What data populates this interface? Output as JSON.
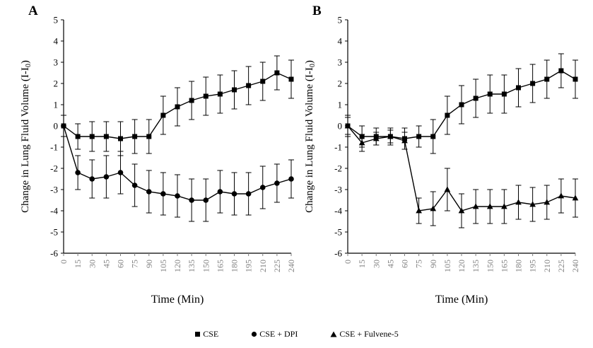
{
  "panels": [
    {
      "label": "A"
    },
    {
      "label": "B"
    }
  ],
  "axis_text": {
    "xlabel": "Time (Min)",
    "ylabel_pre": "Change in Lung Fluid Volume (I-I",
    "ylabel_sub": "0",
    "ylabel_post": ")"
  },
  "legend": {
    "items": [
      {
        "marker": "square",
        "label": "CSE"
      },
      {
        "marker": "circle",
        "label": "CSE + DPI"
      },
      {
        "marker": "triangle",
        "label": "CSE + Fulvene-5"
      }
    ]
  },
  "colors": {
    "series": "#000000",
    "axis": "#000000",
    "x_tick_label": "#7f7f7f",
    "background": "#ffffff"
  },
  "chart_data": [
    {
      "type": "line",
      "title": "A",
      "xlabel": "Time (Min)",
      "ylabel": "Change in Lung Fluid Volume (I-I0)",
      "ylim": [
        -6,
        5
      ],
      "grid": false,
      "legend_position": "bottom",
      "error_bars": true,
      "categories": [
        0,
        15,
        30,
        45,
        60,
        75,
        90,
        105,
        120,
        135,
        150,
        165,
        180,
        195,
        210,
        225,
        240
      ],
      "series": [
        {
          "name": "CSE",
          "marker": "square",
          "values": [
            0,
            -0.5,
            -0.5,
            -0.5,
            -0.6,
            -0.5,
            -0.5,
            0.5,
            0.9,
            1.2,
            1.4,
            1.5,
            1.7,
            1.9,
            2.1,
            2.5,
            2.2
          ],
          "errors": [
            0.5,
            0.6,
            0.7,
            0.7,
            0.8,
            0.8,
            0.8,
            0.9,
            0.9,
            0.9,
            0.9,
            0.9,
            0.9,
            0.9,
            0.9,
            0.8,
            0.9
          ]
        },
        {
          "name": "CSE + DPI",
          "marker": "circle",
          "values": [
            0,
            -2.2,
            -2.5,
            -2.4,
            -2.2,
            -2.8,
            -3.1,
            -3.2,
            -3.3,
            -3.5,
            -3.5,
            -3.1,
            -3.2,
            -3.2,
            -2.9,
            -2.7,
            -2.5
          ],
          "errors": [
            0.5,
            0.8,
            0.9,
            1.0,
            1.0,
            1.0,
            1.0,
            1.0,
            1.0,
            1.0,
            1.0,
            1.0,
            1.0,
            1.0,
            1.0,
            0.9,
            0.9
          ]
        }
      ]
    },
    {
      "type": "line",
      "title": "B",
      "xlabel": "Time (Min)",
      "ylabel": "Change in Lung Fluid Volume (I-I0)",
      "ylim": [
        -6,
        5
      ],
      "grid": false,
      "legend_position": "bottom",
      "error_bars": true,
      "categories": [
        0,
        15,
        30,
        45,
        60,
        75,
        90,
        105,
        120,
        135,
        150,
        165,
        180,
        195,
        210,
        225,
        240
      ],
      "series": [
        {
          "name": "CSE",
          "marker": "square",
          "values": [
            0,
            -0.5,
            -0.5,
            -0.5,
            -0.6,
            -0.5,
            -0.5,
            0.5,
            1.0,
            1.3,
            1.5,
            1.5,
            1.8,
            2.0,
            2.2,
            2.6,
            2.2
          ],
          "errors": [
            0.5,
            0.5,
            0.4,
            0.4,
            0.5,
            0.5,
            0.8,
            0.9,
            0.9,
            0.9,
            0.9,
            0.9,
            0.9,
            0.9,
            0.9,
            0.8,
            0.9
          ]
        },
        {
          "name": "CSE + Fulvene-5",
          "marker": "triangle",
          "values": [
            0,
            -0.8,
            -0.6,
            -0.5,
            -0.7,
            -4.0,
            -3.9,
            -3.0,
            -4.0,
            -3.8,
            -3.8,
            -3.8,
            -3.6,
            -3.7,
            -3.6,
            -3.3,
            -3.4
          ],
          "errors": [
            0.4,
            0.4,
            0.3,
            0.3,
            0.4,
            0.6,
            0.8,
            1.0,
            0.8,
            0.8,
            0.8,
            0.8,
            0.8,
            0.8,
            0.8,
            0.8,
            0.9
          ]
        }
      ]
    }
  ]
}
